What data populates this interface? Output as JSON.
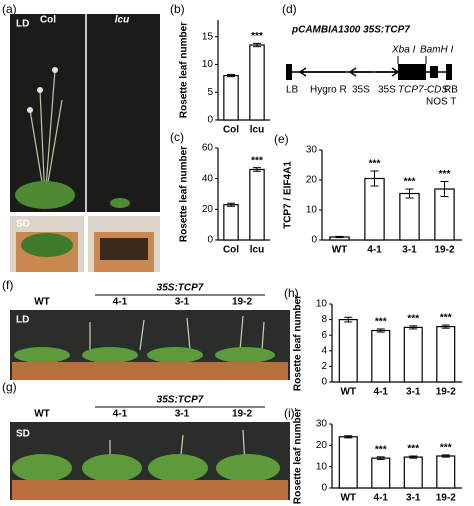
{
  "photos": {
    "a": {
      "panel": "(a)",
      "day": "LD",
      "col": "Col",
      "lcu": "lcu",
      "sd": "SD"
    },
    "f": {
      "panel": "(f)",
      "wt": "WT",
      "construct": "35S:TCP7",
      "lines": [
        "4-1",
        "3-1",
        "19-2"
      ],
      "day": "LD"
    },
    "g": {
      "panel": "(g)",
      "wt": "WT",
      "construct": "35S:TCP7",
      "lines": [
        "4-1",
        "3-1",
        "19-2"
      ],
      "day": "SD"
    }
  },
  "construct": {
    "panel": "(d)",
    "title": "pCAMBIA1300 35S:TCP7",
    "xba": "Xba I",
    "bam": "BamH I",
    "lb": "LB",
    "hygro": "Hygro R",
    "p1": "35S",
    "p2": "35S",
    "cds": "TCP7-CDS",
    "rb": "RB",
    "nos": "NOS T"
  },
  "chart_data": [
    {
      "type": "bar",
      "panel": "(b)",
      "y_label": "Rosette leaf number",
      "categories": [
        "Col",
        "lcu"
      ],
      "values": [
        8,
        13.5
      ],
      "errors": [
        0.2,
        0.3
      ],
      "annotations": [
        null,
        "***"
      ],
      "ylim": [
        0,
        18
      ],
      "yticks": [
        0,
        5,
        10,
        15
      ]
    },
    {
      "type": "bar",
      "panel": "(c)",
      "y_label": "Rosette leaf number",
      "categories": [
        "Col",
        "lcu"
      ],
      "values": [
        23,
        46
      ],
      "errors": [
        1,
        1.2
      ],
      "annotations": [
        null,
        "***"
      ],
      "ylim": [
        0,
        60
      ],
      "yticks": [
        0,
        20,
        40,
        60
      ]
    },
    {
      "type": "bar",
      "panel": "(e)",
      "y_label": "TCP7 / EIF4A1",
      "categories": [
        "WT",
        "4-1",
        "3-1",
        "19-2"
      ],
      "values": [
        1,
        20.5,
        15.5,
        17
      ],
      "errors": [
        0.2,
        2.5,
        1.5,
        2.5
      ],
      "annotations": [
        null,
        "***",
        "***",
        "***"
      ],
      "ylim": [
        0,
        30
      ],
      "yticks": [
        0,
        10,
        20,
        30
      ]
    },
    {
      "type": "bar",
      "panel": "(h)",
      "y_label": "Rosette leaf number",
      "categories": [
        "WT",
        "4-1",
        "3-1",
        "19-2"
      ],
      "values": [
        8,
        6.6,
        7,
        7.1
      ],
      "errors": [
        0.3,
        0.2,
        0.2,
        0.2
      ],
      "annotations": [
        null,
        "***",
        "***",
        "***"
      ],
      "ylim": [
        0,
        10
      ],
      "yticks": [
        0,
        2,
        4,
        6,
        8,
        10
      ]
    },
    {
      "type": "bar",
      "panel": "(i)",
      "y_label": "Rosette leaf number",
      "categories": [
        "WT",
        "4-1",
        "3-1",
        "19-2"
      ],
      "values": [
        24,
        14,
        14.5,
        15
      ],
      "errors": [
        0.5,
        0.6,
        0.5,
        0.5
      ],
      "annotations": [
        null,
        "***",
        "***",
        "***"
      ],
      "ylim": [
        0,
        30
      ],
      "yticks": [
        0,
        10,
        20,
        30
      ]
    }
  ]
}
